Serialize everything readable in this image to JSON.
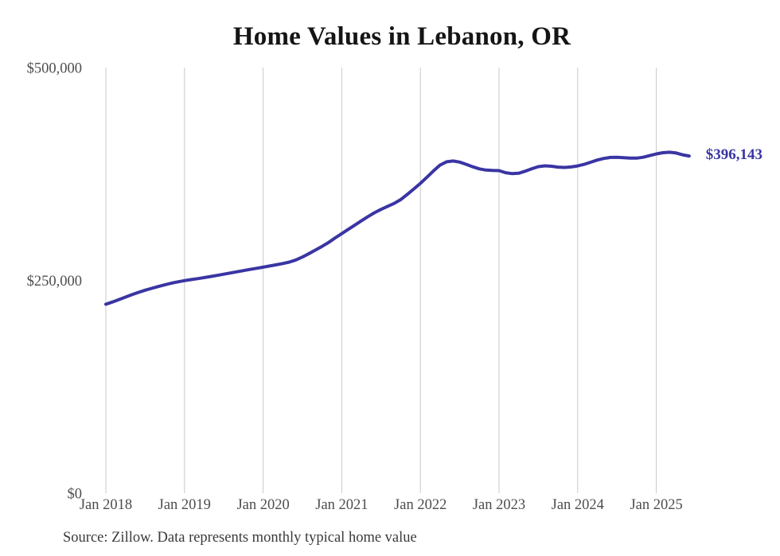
{
  "colors": {
    "line": "#3a35a3",
    "grid": "#c9c9c9",
    "axis_text": "#4d4d4d",
    "title_text": "#151515",
    "background": "#ffffff"
  },
  "chart_data": {
    "type": "line",
    "title": "Home Values in Lebanon, OR",
    "source_note": "Source: Zillow. Data represents monthly typical home value",
    "final_value": 396143,
    "final_value_label": "$396,143",
    "frequency": "monthly",
    "x_start": "2018-01",
    "x_end": "2025-06",
    "x_tick_labels": [
      "Jan 2018",
      "Jan 2019",
      "Jan 2020",
      "Jan 2021",
      "Jan 2022",
      "Jan 2023",
      "Jan 2024",
      "Jan 2025"
    ],
    "y_ticks": [
      0,
      250000,
      500000
    ],
    "y_tick_labels": [
      "$0",
      "$250,000",
      "$500,000"
    ],
    "ylim": [
      0,
      500000
    ],
    "grid": "vertical-only",
    "legend": "none",
    "series": [
      {
        "name": "Typical home value",
        "values": [
          222000,
          224600,
          227500,
          230400,
          233300,
          236000,
          238500,
          240700,
          242800,
          244800,
          246700,
          248300,
          249700,
          250900,
          252100,
          253300,
          254600,
          255900,
          257300,
          258700,
          260100,
          261500,
          262900,
          264200,
          265500,
          266900,
          268300,
          269800,
          271500,
          274000,
          277500,
          281500,
          285700,
          290000,
          294600,
          300000,
          305000,
          310000,
          315000,
          320000,
          325000,
          329500,
          333500,
          337000,
          340500,
          345000,
          351000,
          357500,
          364000,
          371200,
          378700,
          385500,
          389300,
          390300,
          389000,
          386400,
          383500,
          381000,
          379600,
          379200,
          379000,
          376500,
          375400,
          375900,
          378300,
          381200,
          383600,
          384600,
          384100,
          383100,
          382700,
          383300,
          384500,
          386400,
          388900,
          391400,
          393300,
          394500,
          394600,
          394100,
          393600,
          393600,
          394700,
          396600,
          398600,
          400000,
          400600,
          399700,
          397600,
          396143
        ]
      }
    ]
  }
}
